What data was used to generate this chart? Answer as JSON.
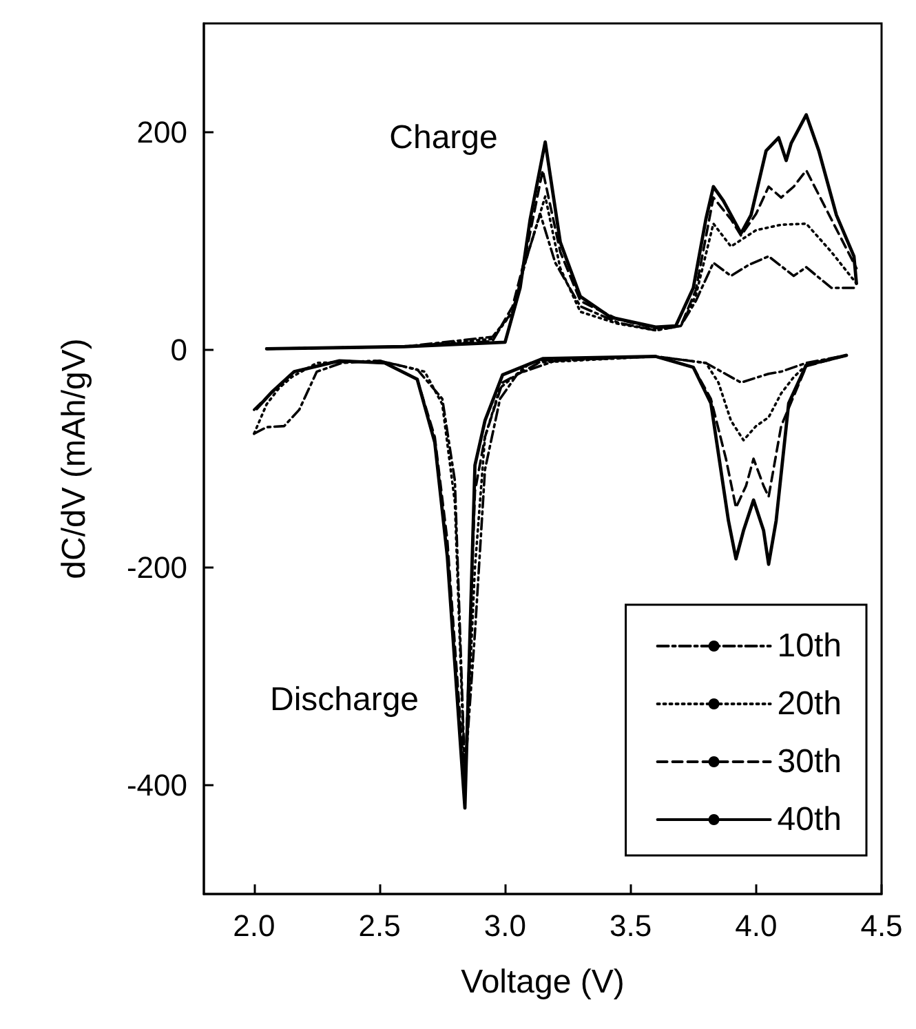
{
  "chart_data": {
    "type": "line",
    "xlabel": "Voltage (V)",
    "ylabel": "dC/dV (mAh/gV)",
    "xlim": [
      1.8,
      4.5
    ],
    "ylim": [
      -500,
      300
    ],
    "xticks": [
      {
        "value": 2,
        "label": "2.0"
      },
      2.5,
      {
        "value": 3,
        "label": "3.0"
      },
      3.5,
      {
        "value": 4,
        "label": "4.0"
      },
      4.5
    ],
    "yticks": [
      -400,
      -200,
      0,
      200
    ],
    "grid": false,
    "legend": "bottom right",
    "marker": "none",
    "annotations": [
      "Charge",
      "Discharge"
    ],
    "series": [
      {
        "name": "10th",
        "color": "#000000",
        "line_style": "dashdot",
        "x": [
          2.05,
          2.6,
          2.95,
          3.03,
          3.08,
          3.14,
          3.2,
          3.3,
          3.45,
          3.6,
          3.7,
          3.76,
          3.83,
          3.9,
          3.97,
          4.05,
          4.15,
          4.2,
          4.3,
          4.4,
          null,
          2.0,
          2.05,
          2.12,
          2.18,
          2.25,
          2.35,
          2.5,
          2.65,
          2.75,
          2.8,
          2.84,
          2.88,
          2.92,
          2.98,
          3.05,
          3.2,
          3.6,
          3.8,
          3.94,
          4.05,
          4.1,
          4.2,
          4.36
        ],
        "values": [
          1,
          3,
          12,
          35,
          80,
          125,
          80,
          40,
          25,
          18,
          22,
          45,
          80,
          68,
          78,
          86,
          68,
          76,
          57,
          57,
          null,
          -77,
          -71,
          -70,
          -55,
          -20,
          -12,
          -10,
          -18,
          -45,
          -120,
          -390,
          -260,
          -110,
          -45,
          -22,
          -10,
          -6,
          -12,
          -30,
          -22,
          -20,
          -12,
          -5
        ]
      },
      {
        "name": "20th",
        "color": "#000000",
        "line_style": "dotted",
        "x": [
          2.05,
          2.6,
          2.95,
          3.03,
          3.08,
          3.16,
          3.22,
          3.3,
          3.45,
          3.6,
          3.7,
          3.76,
          3.83,
          3.9,
          4.0,
          4.1,
          4.2,
          4.3,
          4.4,
          null,
          2.0,
          2.05,
          2.1,
          2.15,
          2.25,
          2.5,
          2.68,
          2.75,
          2.8,
          2.84,
          2.88,
          2.92,
          2.98,
          3.1,
          3.6,
          3.8,
          3.85,
          3.9,
          3.95,
          4.0,
          4.05,
          4.1,
          4.15,
          4.2,
          4.36
        ],
        "values": [
          1,
          3,
          10,
          35,
          80,
          141,
          75,
          35,
          24,
          18,
          22,
          50,
          116,
          95,
          110,
          115,
          116,
          90,
          61,
          null,
          -77,
          -50,
          -35,
          -25,
          -12,
          -10,
          -20,
          -50,
          -140,
          -400,
          -200,
          -80,
          -35,
          -12,
          -6,
          -12,
          -30,
          -65,
          -83,
          -70,
          -62,
          -40,
          -25,
          -14,
          -5
        ]
      },
      {
        "name": "30th",
        "color": "#000000",
        "line_style": "dashed",
        "x": [
          2.05,
          2.6,
          2.95,
          3.03,
          3.08,
          3.15,
          3.22,
          3.3,
          3.45,
          3.6,
          3.7,
          3.76,
          3.83,
          3.9,
          3.94,
          4.0,
          4.05,
          4.1,
          4.15,
          4.2,
          4.3,
          4.4,
          null,
          2.0,
          2.07,
          2.16,
          2.34,
          2.52,
          2.65,
          2.72,
          2.77,
          2.84,
          2.88,
          2.92,
          2.99,
          3.15,
          3.6,
          3.75,
          3.82,
          3.88,
          3.92,
          3.96,
          3.99,
          4.03,
          4.05,
          4.1,
          4.2,
          4.36
        ],
        "values": [
          1,
          3,
          8,
          40,
          85,
          165,
          90,
          45,
          28,
          20,
          22,
          55,
          140,
          120,
          105,
          125,
          150,
          140,
          150,
          165,
          120,
          75,
          null,
          -55,
          -39,
          -20,
          -10,
          -12,
          -27,
          -80,
          -175,
          -400,
          -130,
          -80,
          -30,
          -10,
          -6,
          -16,
          -45,
          -100,
          -145,
          -125,
          -100,
          -125,
          -135,
          -70,
          -15,
          -5
        ]
      },
      {
        "name": "40th",
        "color": "#000000",
        "line_style": "solid",
        "x": [
          2.05,
          2.6,
          3.0,
          3.06,
          3.1,
          3.16,
          3.22,
          3.3,
          3.42,
          3.6,
          3.68,
          3.75,
          3.8,
          3.83,
          3.87,
          3.94,
          3.98,
          4.04,
          4.09,
          4.12,
          4.14,
          4.2,
          4.25,
          4.32,
          4.39,
          4.4,
          null,
          2.01,
          2.07,
          2.16,
          2.34,
          2.52,
          2.65,
          2.72,
          2.77,
          2.84,
          2.88,
          2.92,
          2.99,
          3.15,
          3.6,
          3.75,
          3.82,
          3.89,
          3.92,
          3.95,
          3.99,
          4.03,
          4.05,
          4.08,
          4.13,
          4.2,
          4.36
        ],
        "values": [
          1,
          3,
          7,
          57,
          120,
          191,
          99,
          49,
          30,
          21,
          22,
          57,
          120,
          150,
          137,
          107,
          124,
          183,
          195,
          174,
          190,
          216,
          183,
          124,
          86,
          61,
          null,
          -54,
          -39,
          -20,
          -10,
          -12,
          -27,
          -85,
          -190,
          -421,
          -106,
          -65,
          -23,
          -8,
          -6,
          -16,
          -49,
          -157,
          -192,
          -166,
          -138,
          -166,
          -197,
          -157,
          -49,
          -14,
          -5
        ]
      }
    ]
  }
}
